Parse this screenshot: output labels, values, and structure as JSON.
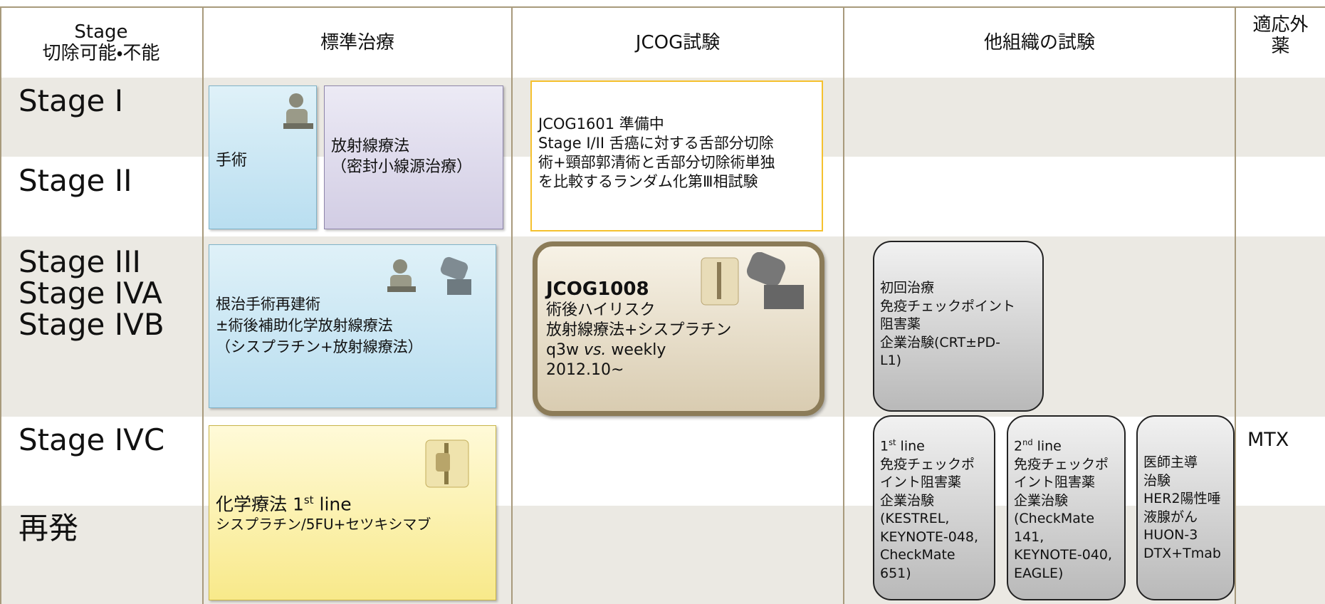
{
  "header": [
    [
      "Stage",
      "切除可能・不能"
    ],
    [
      "標準治療"
    ],
    [
      "JCOG試験"
    ],
    [
      "他組織の試験"
    ],
    [
      "適応外",
      "薬"
    ]
  ],
  "stages": [
    [
      "Stage I"
    ],
    [
      "Stage II"
    ],
    [
      "Stage III",
      "Stage IVA",
      "Stage IVB"
    ],
    [
      "Stage IVC"
    ],
    [
      "再発"
    ]
  ],
  "boxes": {
    "surgery": [
      "手術"
    ],
    "radiotherapy": [
      "放射線療法",
      "（密封小線源治療）"
    ],
    "jcog1601": [
      "JCOG1601 準備中",
      "Stage I/II 舌癌に対する舌部分切除",
      "術+頸部郭清術と舌部分切除術単独",
      "を比較するランダム化第Ⅲ相試験"
    ],
    "radical": [
      "根治手術再建術",
      "±術後補助化学放射線療法",
      "（シスプラチン+放射線療法）"
    ],
    "jcog1008": [
      [
        {
          "b": "JCOG1008"
        }
      ],
      "術後ハイリスク",
      "放射線療法+シスプラチン",
      [
        {
          "t": "q3w "
        },
        {
          "i": "vs."
        },
        {
          "t": " weekly"
        }
      ],
      "2012.10~"
    ],
    "first_treatment": [
      "初回治療",
      "免疫チェックポイント",
      "阻害薬",
      "企業治験(CRT±PD-",
      "L1)"
    ],
    "chemo": [
      [
        {
          "t": "化学療法 1"
        },
        {
          "sup": "st"
        },
        {
          "t": " line"
        }
      ],
      "シスプラチン/5FU+セツキシマブ"
    ],
    "line1": [
      [
        {
          "t": "1"
        },
        {
          "sup": "st"
        },
        {
          "t": " line"
        }
      ],
      "免疫チェックポ",
      "イント阻害薬",
      "企業治験",
      "(KESTREL,",
      "KEYNOTE-048,",
      "CheckMate",
      "651)"
    ],
    "line2": [
      [
        {
          "t": "2"
        },
        {
          "sup": "nd"
        },
        {
          "t": " line"
        }
      ],
      "免疫チェックポ",
      "イント阻害薬",
      "企業治験",
      "(CheckMate",
      "141,",
      "KEYNOTE-040,",
      "EAGLE)"
    ],
    "investigator": [
      "医師主導",
      "治験",
      "HER2陽性唾",
      "液腺がん",
      "HUON-3",
      "DTX+Tmab"
    ],
    "off_label": [
      "MTX"
    ]
  }
}
